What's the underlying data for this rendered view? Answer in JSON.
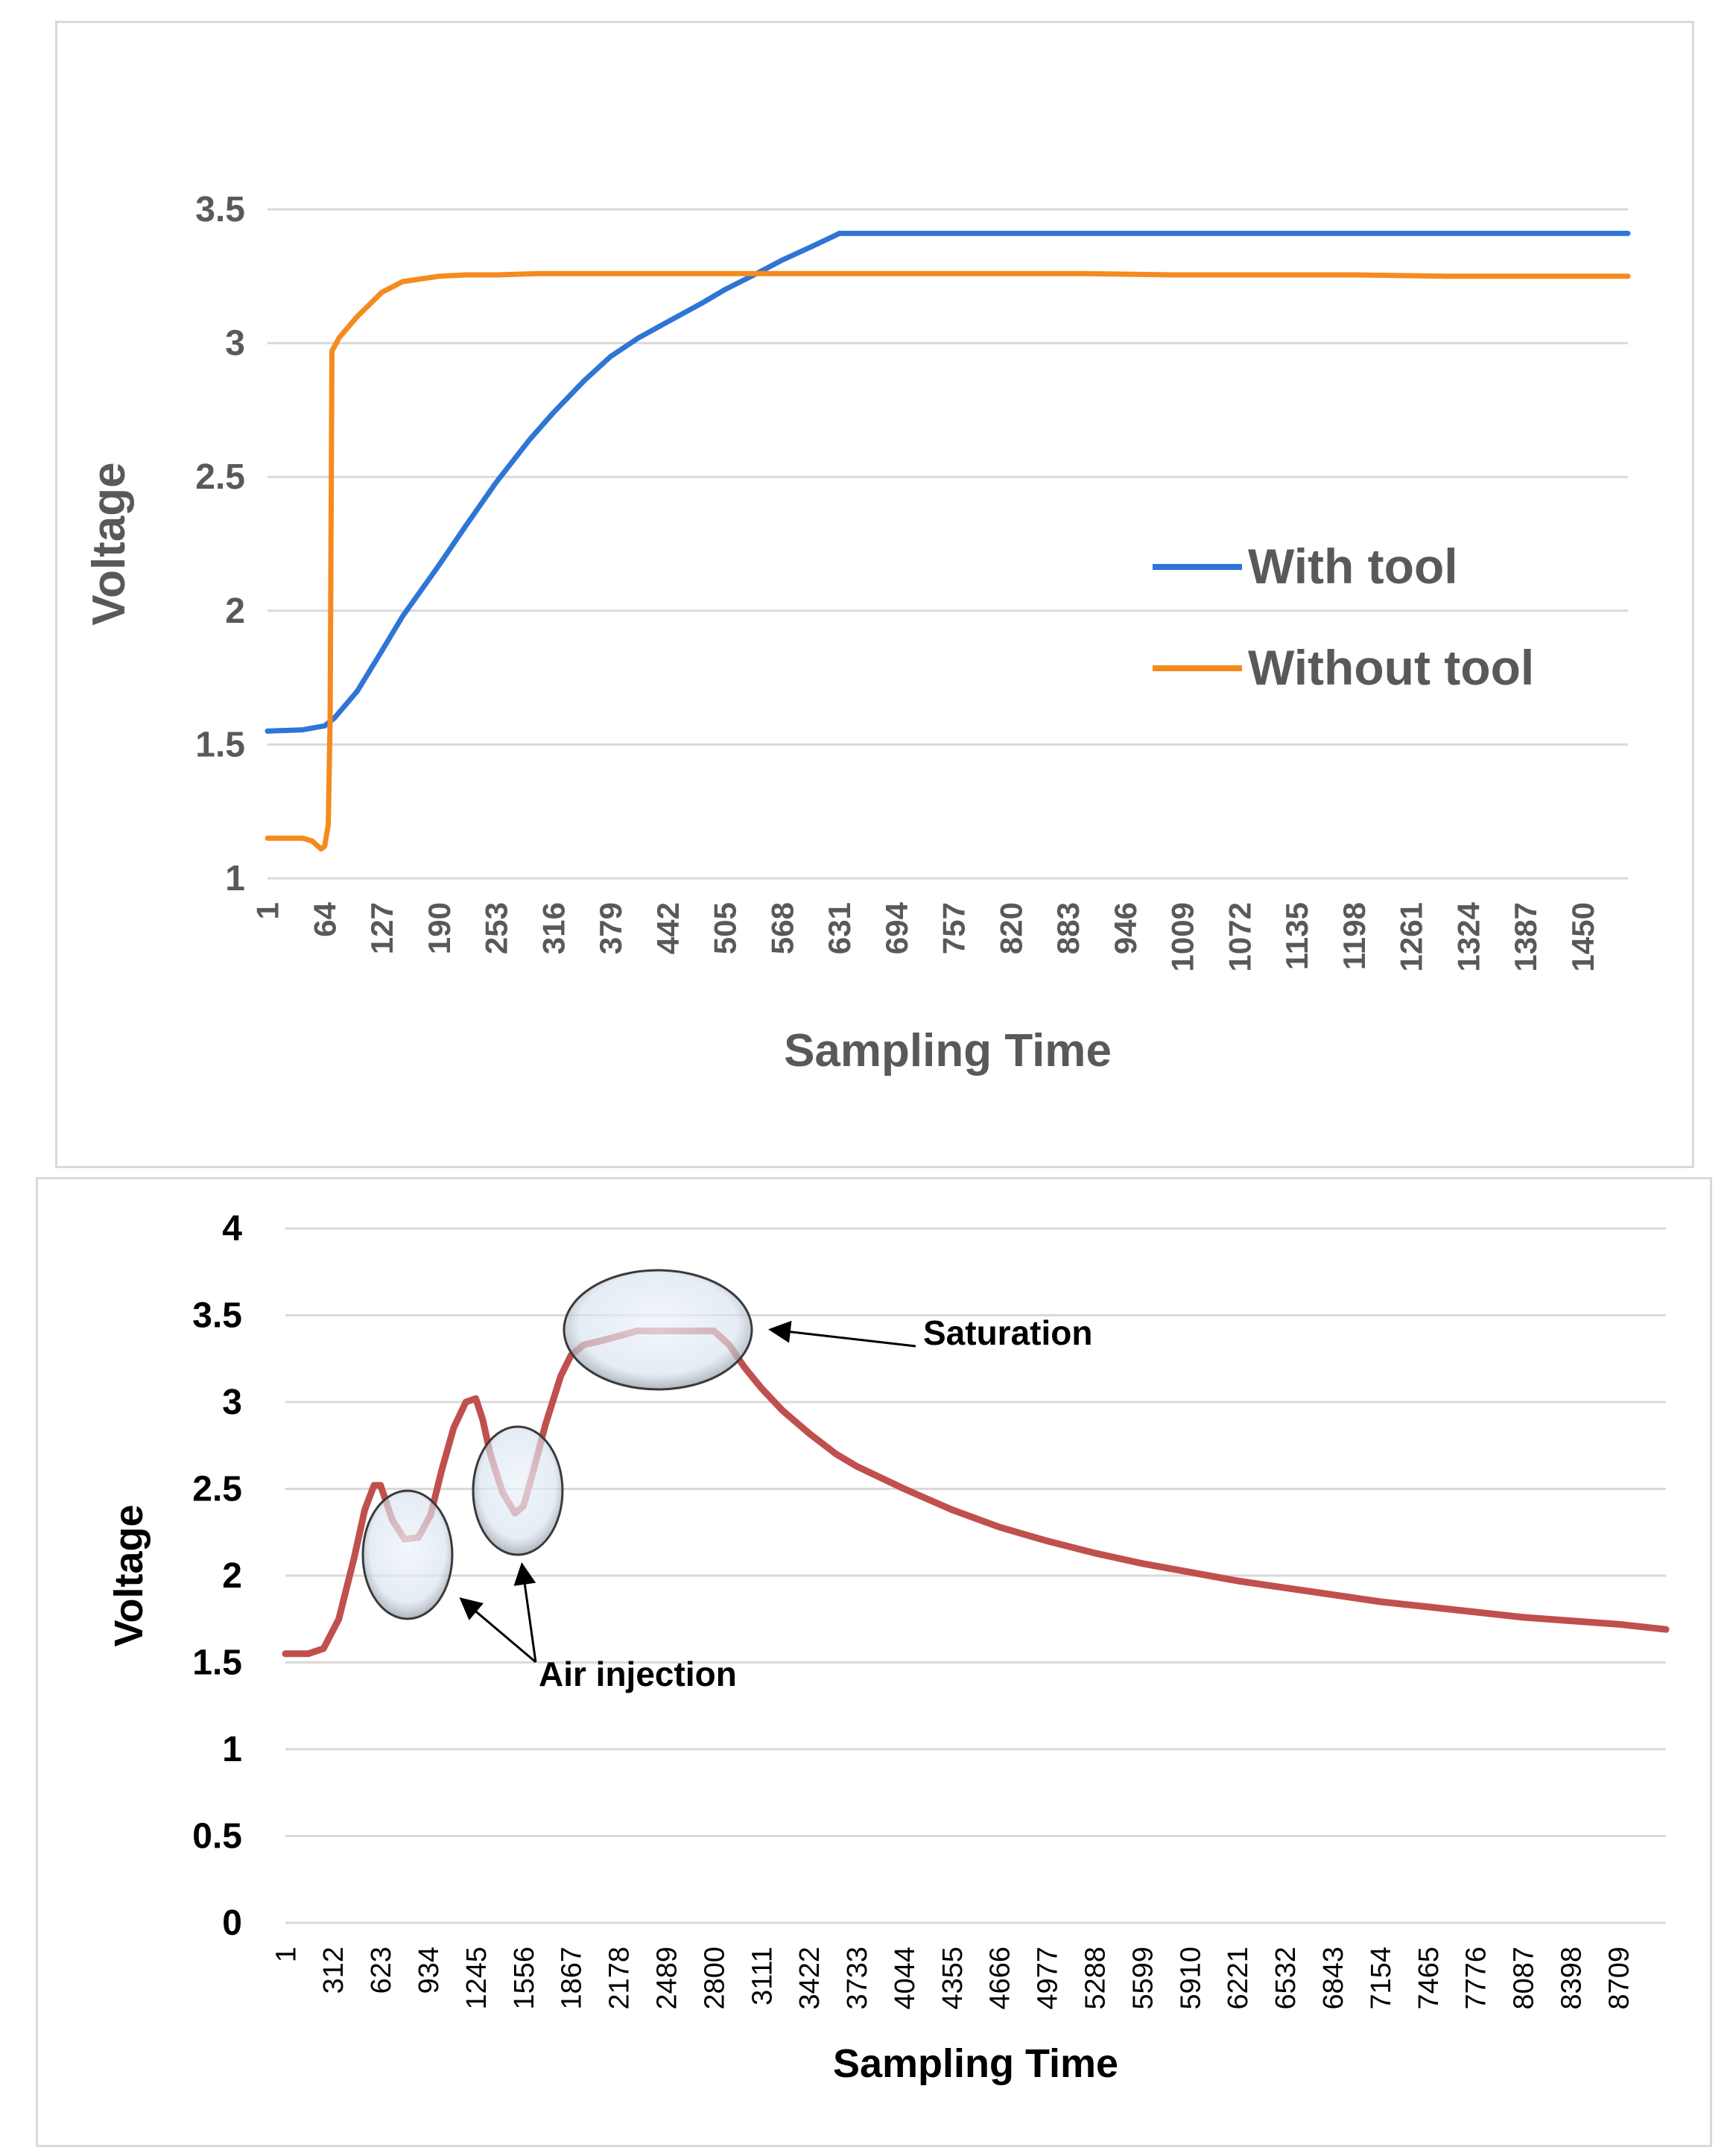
{
  "chart_data": [
    {
      "type": "line",
      "title": "",
      "xlabel": "Sampling Time",
      "ylabel": "Voltage",
      "ylim": [
        1,
        3.5
      ],
      "yticks": [
        "1",
        "1.5",
        "2",
        "2.5",
        "3",
        "3.5"
      ],
      "categories": [
        "1",
        "64",
        "127",
        "190",
        "253",
        "316",
        "379",
        "442",
        "505",
        "568",
        "631",
        "694",
        "757",
        "820",
        "883",
        "946",
        "1009",
        "1072",
        "1135",
        "1198",
        "1261",
        "1324",
        "1387",
        "1450"
      ],
      "xmax": 1500,
      "legend_position": "right",
      "series": [
        {
          "name": "With tool",
          "color": "#2E75D6",
          "x": [
            1,
            40,
            64,
            75,
            100,
            127,
            150,
            190,
            220,
            253,
            290,
            316,
            350,
            379,
            410,
            442,
            480,
            505,
            540,
            568,
            600,
            625,
            631,
            700,
            800,
            900,
            1000,
            1100,
            1200,
            1300,
            1400,
            1500
          ],
          "y": [
            1.55,
            1.555,
            1.57,
            1.6,
            1.7,
            1.85,
            1.98,
            2.17,
            2.32,
            2.48,
            2.64,
            2.74,
            2.86,
            2.95,
            3.02,
            3.08,
            3.15,
            3.2,
            3.26,
            3.31,
            3.36,
            3.4,
            3.41,
            3.41,
            3.41,
            3.41,
            3.41,
            3.41,
            3.41,
            3.41,
            3.41,
            3.41
          ]
        },
        {
          "name": "Without tool",
          "color": "#F58A1F",
          "x": [
            1,
            40,
            50,
            60,
            64,
            68,
            70,
            72,
            80,
            100,
            127,
            150,
            190,
            220,
            253,
            300,
            400,
            500,
            600,
            700,
            800,
            900,
            1000,
            1100,
            1200,
            1300,
            1400,
            1500
          ],
          "y": [
            1.15,
            1.15,
            1.14,
            1.11,
            1.12,
            1.2,
            1.6,
            2.97,
            3.02,
            3.1,
            3.19,
            3.23,
            3.25,
            3.255,
            3.255,
            3.26,
            3.26,
            3.26,
            3.26,
            3.26,
            3.26,
            3.26,
            3.255,
            3.255,
            3.255,
            3.25,
            3.25,
            3.25
          ]
        }
      ]
    },
    {
      "type": "line",
      "title": "",
      "xlabel": "Sampling Time",
      "ylabel": "Voltage",
      "ylim": [
        0,
        4
      ],
      "yticks": [
        "0",
        "0.5",
        "1",
        "1.5",
        "2",
        "2.5",
        "3",
        "3.5",
        "4"
      ],
      "categories": [
        "1",
        "312",
        "623",
        "934",
        "1245",
        "1556",
        "1867",
        "2178",
        "2489",
        "2800",
        "3111",
        "3422",
        "3733",
        "4044",
        "4355",
        "4666",
        "4977",
        "5288",
        "5599",
        "5910",
        "6221",
        "6532",
        "6843",
        "7154",
        "7465",
        "7776",
        "8087",
        "8398",
        "8709"
      ],
      "xmax": 9020,
      "series": [
        {
          "name": "Voltage",
          "color": "#C0504D",
          "x": [
            1,
            150,
            250,
            350,
            450,
            520,
            580,
            623,
            700,
            780,
            870,
            950,
            1020,
            1100,
            1180,
            1245,
            1290,
            1340,
            1420,
            1500,
            1556,
            1620,
            1700,
            1800,
            1867,
            1950,
            2050,
            2178,
            2300,
            2489,
            2650,
            2800,
            2900,
            3000,
            3111,
            3250,
            3422,
            3600,
            3733,
            4044,
            4355,
            4666,
            4977,
            5288,
            5599,
            5910,
            6221,
            6532,
            6843,
            7154,
            7465,
            7776,
            8087,
            8398,
            8709,
            9020
          ],
          "y": [
            1.55,
            1.55,
            1.58,
            1.75,
            2.1,
            2.38,
            2.52,
            2.52,
            2.32,
            2.21,
            2.22,
            2.35,
            2.6,
            2.85,
            3.0,
            3.02,
            2.9,
            2.7,
            2.48,
            2.36,
            2.4,
            2.6,
            2.87,
            3.15,
            3.27,
            3.33,
            3.35,
            3.38,
            3.41,
            3.41,
            3.41,
            3.41,
            3.33,
            3.2,
            3.08,
            2.95,
            2.82,
            2.7,
            2.63,
            2.5,
            2.38,
            2.28,
            2.2,
            2.13,
            2.07,
            2.02,
            1.97,
            1.93,
            1.89,
            1.85,
            1.82,
            1.79,
            1.76,
            1.74,
            1.72,
            1.69
          ]
        }
      ],
      "annotations": [
        {
          "text": "Saturation",
          "target": "plateau near x≈2650, y≈3.4"
        },
        {
          "text": "Air injection",
          "targets": [
            "dip near x≈850, y≈2.2",
            "dip near x≈1500, y≈2.35"
          ]
        }
      ]
    }
  ]
}
